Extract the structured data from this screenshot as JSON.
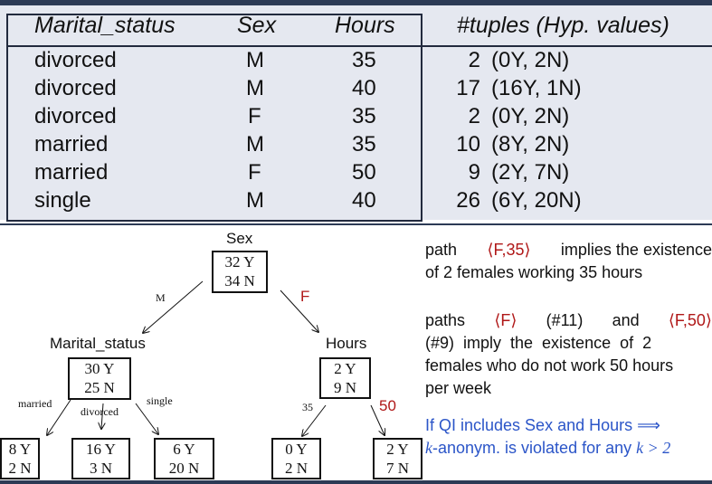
{
  "table": {
    "headers": [
      "Marital_status",
      "Sex",
      "Hours",
      "#tuples (Hyp. values)"
    ],
    "rows": [
      {
        "marital": "divorced",
        "sex": "M",
        "hours": "35",
        "count": "2",
        "hyp": "(0Y, 2N)"
      },
      {
        "marital": "divorced",
        "sex": "M",
        "hours": "40",
        "count": "17",
        "hyp": "(16Y, 1N)"
      },
      {
        "marital": "divorced",
        "sex": "F",
        "hours": "35",
        "count": "2",
        "hyp": "(0Y, 2N)"
      },
      {
        "marital": "married",
        "sex": "M",
        "hours": "35",
        "count": "10",
        "hyp": "(8Y, 2N)"
      },
      {
        "marital": "married",
        "sex": "F",
        "hours": "50",
        "count": "9",
        "hyp": "(2Y, 7N)"
      },
      {
        "marital": "single",
        "sex": "M",
        "hours": "40",
        "count": "26",
        "hyp": "(6Y, 20N)"
      }
    ]
  },
  "tree": {
    "root": {
      "label": "Sex",
      "y": "32 Y",
      "n": "34 N"
    },
    "marital_node": {
      "label": "Marital_status",
      "y": "30 Y",
      "n": "25 N"
    },
    "hours_node": {
      "label": "Hours",
      "y": "2 Y",
      "n": "9 N"
    },
    "leaf_married": {
      "y": "8 Y",
      "n": "2 N"
    },
    "leaf_divorced": {
      "y": "16 Y",
      "n": "3 N"
    },
    "leaf_single": {
      "y": "6 Y",
      "n": "20 N"
    },
    "leaf_35": {
      "y": "0 Y",
      "n": "2 N"
    },
    "leaf_50": {
      "y": "2 Y",
      "n": "7 N"
    },
    "edges": {
      "m": "M",
      "f": "F",
      "married": "married",
      "divorced": "divorced",
      "single": "single",
      "h35": "35",
      "h50": "50"
    }
  },
  "explanations": {
    "p1_a": "path",
    "p1_path": "⟨F,35⟩",
    "p1_b": "implies the existence",
    "p1_c": "of 2 females working 35 hours",
    "p2_a": "paths",
    "p2_path1": "⟨F⟩",
    "p2_b": "(#11)",
    "p2_c": "and",
    "p2_path2": "⟨F,50⟩",
    "p2_d": "(#9)  imply  the  existence  of  2",
    "p2_e": "females who do not work 50 hours",
    "p2_f": "per week",
    "p3_a": "If QI includes Sex and Hours ⟹",
    "p3_k": "k",
    "p3_b": "-anonym. is violated for any",
    "p3_cond": "k > 2"
  }
}
